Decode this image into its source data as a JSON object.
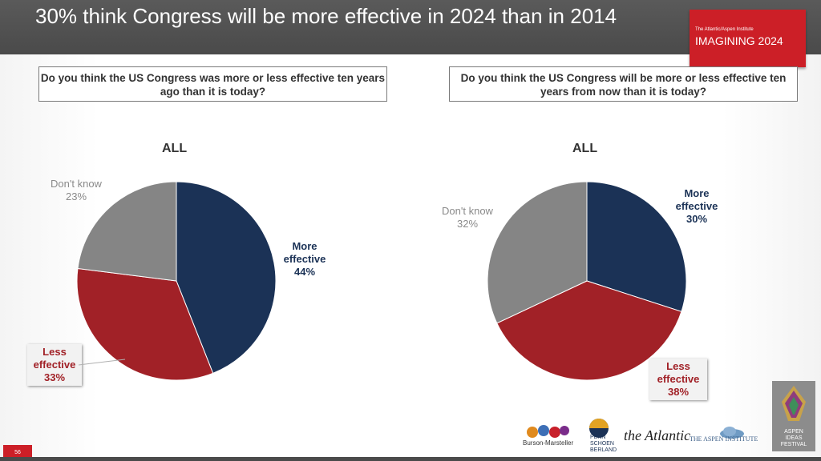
{
  "header": {
    "title": "30% think Congress will be more effective in 2024 than in 2014",
    "brand_small": "The Atlantic/Aspen Institute",
    "brand_big": "IMAGINING 2024"
  },
  "chart_data": [
    {
      "type": "pie",
      "question": "Do you think the US Congress was more or less effective ten years ago than it is today?",
      "title": "ALL",
      "slices": [
        {
          "label": "More effective",
          "value": 44,
          "color": "#1b3256"
        },
        {
          "label": "Less effective",
          "value": 33,
          "color": "#a12127"
        },
        {
          "label": "Don't know",
          "value": 23,
          "color": "#858585"
        }
      ]
    },
    {
      "type": "pie",
      "question": "Do you think the US Congress will be more or less effective ten years from now than it is today?",
      "title": "ALL",
      "slices": [
        {
          "label": "More effective",
          "value": 30,
          "color": "#1b3256"
        },
        {
          "label": "Less effective",
          "value": 38,
          "color": "#a12127"
        },
        {
          "label": "Don't know",
          "value": 32,
          "color": "#858585"
        }
      ]
    }
  ],
  "labels": {
    "c1": {
      "more": "More\neffective\n44%",
      "less": "Less\neffective\n33%",
      "dk": "Don't know\n23%"
    },
    "c2": {
      "more": "More\neffective\n30%",
      "less": "Less\neffective\n38%",
      "dk": "Don't know\n32%"
    }
  },
  "footer": {
    "slide_number": "56",
    "logos": {
      "burson": "Burson-Marsteller",
      "psb": "PENN\nSCHOEN\nBERLAND",
      "atlantic": "the Atlantic",
      "aspen": "THE ASPEN INSTITUTE",
      "ideas": "ASPEN\nIDEAS\nFESTIVAL"
    }
  }
}
